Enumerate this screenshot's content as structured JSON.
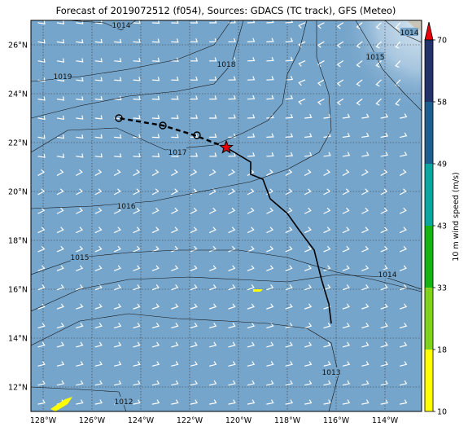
{
  "title": "Forecast of 2019072512 (f054), Sources: GDACS (TC track), GFS (Meteo)",
  "map": {
    "lon_min": -128.5,
    "lon_max": -112.5,
    "lat_min": 11,
    "lat_max": 27,
    "lon_ticks": [
      {
        "v": -128,
        "label": "128°W"
      },
      {
        "v": -126,
        "label": "126°W"
      },
      {
        "v": -124,
        "label": "124°W"
      },
      {
        "v": -122,
        "label": "122°W"
      },
      {
        "v": -120,
        "label": "120°W"
      },
      {
        "v": -118,
        "label": "118°W"
      },
      {
        "v": -116,
        "label": "116°W"
      },
      {
        "v": -114,
        "label": "114°W"
      }
    ],
    "lat_ticks": [
      {
        "v": 12,
        "label": "12°N"
      },
      {
        "v": 14,
        "label": "14°N"
      },
      {
        "v": 16,
        "label": "16°N"
      },
      {
        "v": 18,
        "label": "18°N"
      },
      {
        "v": 20,
        "label": "20°N"
      },
      {
        "v": 22,
        "label": "22°N"
      },
      {
        "v": 24,
        "label": "24°N"
      },
      {
        "v": 26,
        "label": "26°N"
      }
    ],
    "ocean_color": "#76a5cb",
    "track_past": [
      [
        -116.2,
        14.6
      ],
      [
        -116.3,
        15.4
      ],
      [
        -116.6,
        16.4
      ],
      [
        -116.9,
        17.6
      ],
      [
        -117.5,
        18.4
      ],
      [
        -118.0,
        19.1
      ],
      [
        -118.7,
        19.7
      ],
      [
        -119.0,
        20.5
      ],
      [
        -119.5,
        20.7
      ],
      [
        -119.5,
        21.2
      ],
      [
        -120.5,
        21.8
      ]
    ],
    "track_forecast": [
      [
        -120.5,
        21.8
      ],
      [
        -121.8,
        22.3
      ],
      [
        -123.1,
        22.7
      ],
      [
        -124.9,
        23.0
      ]
    ],
    "forecast_points": [
      [
        -121.7,
        22.3
      ],
      [
        -123.1,
        22.7
      ],
      [
        -124.9,
        23.0
      ]
    ],
    "current_position": [
      -120.5,
      21.8
    ],
    "isobars": [
      {
        "label": "1019",
        "label_at": [
          -127.2,
          24.7
        ],
        "pts": [
          [
            -128.5,
            24.5
          ],
          [
            -126.5,
            24.7
          ],
          [
            -124.5,
            25.0
          ],
          [
            -122.5,
            25.4
          ],
          [
            -121,
            26.0
          ],
          [
            -120.3,
            27.0
          ]
        ]
      },
      {
        "label": "1018",
        "label_at": [
          -120.5,
          25.2
        ],
        "pts": [
          [
            -128.5,
            23.0
          ],
          [
            -126.5,
            23.5
          ],
          [
            -124.5,
            23.9
          ],
          [
            -122.5,
            24.1
          ],
          [
            -121,
            24.4
          ],
          [
            -120.3,
            25.2
          ],
          [
            -119.8,
            27.0
          ]
        ]
      },
      {
        "label": "1017",
        "label_at": [
          -122.5,
          21.6
        ],
        "pts": [
          [
            -128.5,
            21.6
          ],
          [
            -127,
            22.5
          ],
          [
            -125,
            22.6
          ],
          [
            -123,
            21.7
          ],
          [
            -121,
            21.9
          ],
          [
            -119.8,
            22.4
          ],
          [
            -118.8,
            22.9
          ],
          [
            -118.2,
            23.6
          ],
          [
            -118.0,
            24.8
          ],
          [
            -117.5,
            25.8
          ],
          [
            -117.2,
            27.0
          ]
        ]
      },
      {
        "label": "1016",
        "label_at": [
          -124.6,
          19.4
        ],
        "pts": [
          [
            -128.5,
            19.3
          ],
          [
            -126,
            19.4
          ],
          [
            -123.5,
            19.6
          ],
          [
            -121,
            20.1
          ],
          [
            -119.5,
            20.4
          ],
          [
            -118,
            20.9
          ],
          [
            -116.7,
            21.6
          ],
          [
            -116.2,
            22.5
          ],
          [
            -116.3,
            24.0
          ],
          [
            -116.8,
            25.5
          ],
          [
            -116.8,
            27.0
          ]
        ]
      },
      {
        "label": "1015",
        "label_at": [
          -126.5,
          17.3
        ],
        "pts": [
          [
            -128.5,
            16.6
          ],
          [
            -126.5,
            17.3
          ],
          [
            -124.5,
            17.5
          ],
          [
            -122.5,
            17.6
          ],
          [
            -120,
            17.6
          ],
          [
            -118,
            17.3
          ],
          [
            -116,
            16.7
          ],
          [
            -114.5,
            16.4
          ],
          [
            -112.5,
            15.9
          ]
        ]
      },
      {
        "label": "1015",
        "label_at": [
          -114.4,
          25.5
        ],
        "pts": [
          [
            -115.2,
            27.0
          ],
          [
            -114.6,
            26.0
          ],
          [
            -114.1,
            25.0
          ],
          [
            -113.2,
            24.0
          ],
          [
            -112.5,
            23.3
          ]
        ]
      },
      {
        "label": "1014",
        "label_at": [
          -113.9,
          16.6
        ],
        "pts": [
          [
            -128.5,
            15.1
          ],
          [
            -126.5,
            16.0
          ],
          [
            -124.5,
            16.4
          ],
          [
            -122,
            16.5
          ],
          [
            -120,
            16.4
          ],
          [
            -118,
            16.3
          ],
          [
            -116,
            16.6
          ],
          [
            -114,
            16.5
          ],
          [
            -112.5,
            16.0
          ]
        ]
      },
      {
        "label": "1014",
        "label_at": [
          -113.0,
          26.5
        ],
        "pts": [
          [
            -114.0,
            27.0
          ],
          [
            -113.4,
            26.5
          ],
          [
            -112.5,
            26.1
          ]
        ]
      },
      {
        "label": "1013",
        "label_at": [
          -116.2,
          12.6
        ],
        "pts": [
          [
            -128.5,
            13.7
          ],
          [
            -126.5,
            14.7
          ],
          [
            -124.5,
            15.0
          ],
          [
            -122.5,
            14.8
          ],
          [
            -120.5,
            14.7
          ],
          [
            -118.8,
            14.6
          ],
          [
            -117.2,
            14.4
          ],
          [
            -116.2,
            13.8
          ],
          [
            -115.9,
            12.5
          ],
          [
            -116.3,
            11.0
          ]
        ]
      },
      {
        "label": "1012",
        "label_at": [
          -124.7,
          11.4
        ],
        "pts": [
          [
            -128.5,
            12.0
          ],
          [
            -126.5,
            11.9
          ],
          [
            -124.9,
            11.8
          ],
          [
            -124.6,
            11.0
          ]
        ]
      },
      {
        "label": "1014",
        "label_at": [
          -124.8,
          26.8
        ],
        "pts": [
          [
            -127,
            27.0
          ],
          [
            -125.5,
            26.9
          ],
          [
            -124.8,
            26.6
          ],
          [
            -124.2,
            27.0
          ]
        ]
      }
    ],
    "high_wind_areas": [
      {
        "pts": [
          [
            -127.7,
            11.1
          ],
          [
            -127.1,
            11.5
          ],
          [
            -126.8,
            11.6
          ],
          [
            -127.0,
            11.3
          ],
          [
            -127.5,
            11.0
          ]
        ]
      },
      {
        "pts": [
          [
            -119.4,
            16.0
          ],
          [
            -119.0,
            16.0
          ],
          [
            -119.1,
            15.9
          ],
          [
            -119.4,
            15.9
          ]
        ]
      }
    ],
    "land_patch_color": "#c9c6b8"
  },
  "colorbar": {
    "label": "10 m wind speed (m/s)",
    "ticks": [
      "10",
      "18",
      "33",
      "43",
      "49",
      "58",
      "70"
    ],
    "segments": [
      {
        "from": "10",
        "to": "18",
        "color": "#ffff00"
      },
      {
        "from": "18",
        "to": "33",
        "color": "#7fd31a"
      },
      {
        "from": "33",
        "to": "43",
        "color": "#13b513"
      },
      {
        "from": "43",
        "to": "49",
        "color": "#0aa6a0"
      },
      {
        "from": "49",
        "to": "58",
        "color": "#1f5f8f"
      },
      {
        "from": "58",
        "to": "70",
        "color": "#23336a"
      }
    ],
    "extend_color": "#e8000b"
  }
}
